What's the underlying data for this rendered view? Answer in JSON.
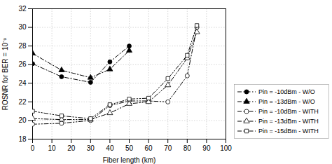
{
  "chart_data": {
    "type": "line",
    "xlabel": "Fiber length (km)",
    "ylabel": "ROSNR for BER = 10⁻⁹",
    "xlim": [
      0,
      100
    ],
    "ylim": [
      18,
      32
    ],
    "xticks": [
      0,
      10,
      20,
      30,
      40,
      50,
      60,
      70,
      80,
      90,
      100
    ],
    "yticks": [
      18,
      20,
      22,
      24,
      26,
      28,
      30,
      32
    ],
    "grid": true,
    "legend": "lower right",
    "series": [
      {
        "name": "Pin = -10dBm - W/O",
        "color": "black",
        "marker": "circle",
        "line_style": "dashdot",
        "x": [
          0,
          15,
          30,
          40,
          50
        ],
        "values": [
          26.1,
          24.7,
          24.1,
          26.3,
          28.0
        ]
      },
      {
        "name": "Pin = -13dBm - W/O",
        "color": "black",
        "marker": "triangle",
        "line_style": "dashdot",
        "x": [
          0,
          15,
          30,
          40,
          50
        ],
        "values": [
          27.2,
          25.4,
          24.6,
          25.5,
          27.5
        ]
      },
      {
        "name": "Pin = -10dBm - WITH",
        "color": "black",
        "marker": "circle-open",
        "line_style": "dashdotdot",
        "x": [
          0,
          15,
          30,
          40,
          50,
          60,
          70,
          80,
          85
        ],
        "values": [
          19.6,
          19.7,
          20.0,
          21.6,
          22.1,
          22.1,
          22.0,
          24.8,
          30.0
        ]
      },
      {
        "name": "Pin = -13dBm - WITH",
        "color": "black",
        "marker": "triangle-open",
        "line_style": "dashdotdot",
        "x": [
          0,
          15,
          30,
          40,
          50,
          60,
          70,
          80,
          85
        ],
        "values": [
          20.2,
          20.1,
          20.1,
          20.8,
          21.8,
          22.0,
          23.8,
          26.7,
          29.5
        ]
      },
      {
        "name": "Pin = -15dBm - WITH",
        "color": "black",
        "marker": "square-open",
        "line_style": "dashdotdot",
        "x": [
          0,
          15,
          30,
          40,
          50,
          60,
          70,
          80,
          85
        ],
        "values": [
          21.0,
          20.5,
          20.2,
          21.7,
          22.3,
          22.4,
          24.5,
          27.0,
          30.2
        ]
      }
    ]
  }
}
